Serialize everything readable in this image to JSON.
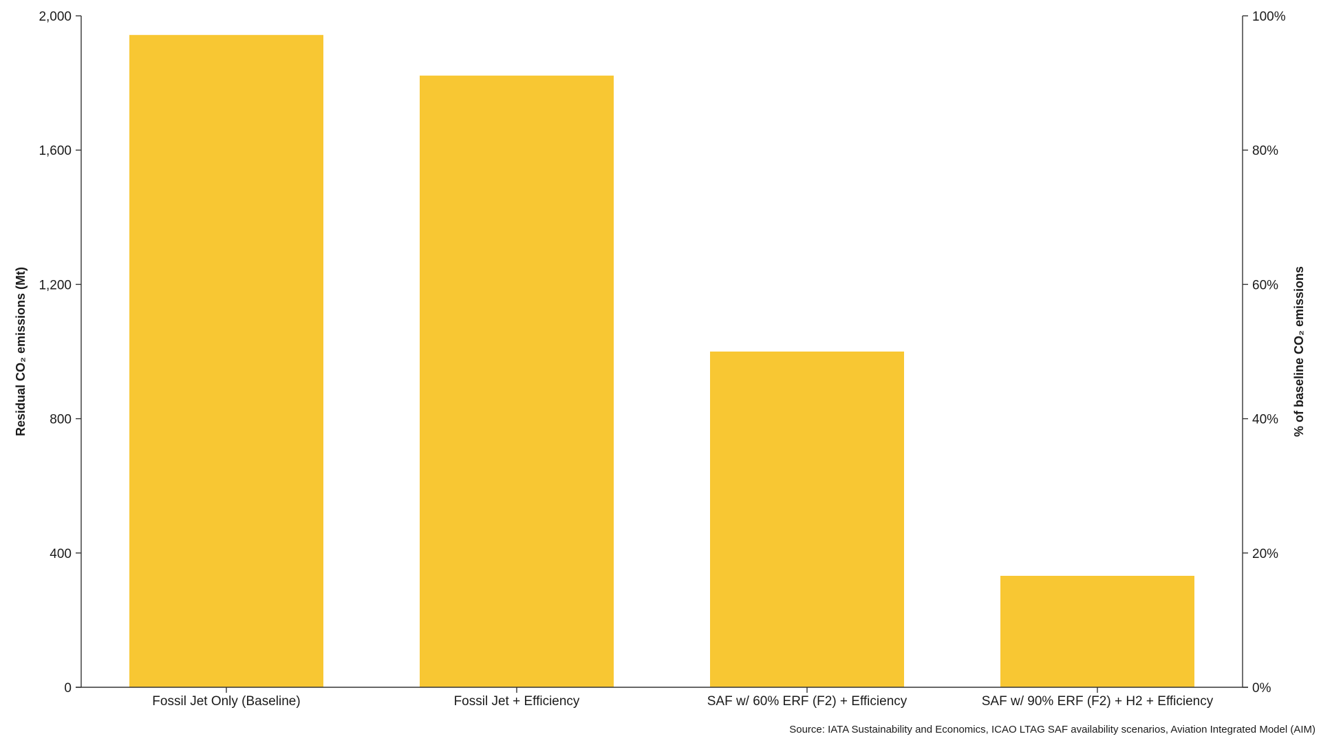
{
  "chart_data": {
    "type": "bar",
    "categories": [
      "Fossil Jet Only (Baseline)",
      "Fossil Jet + Efficiency",
      "SAF w/ 60% ERF (F2) + Efficiency",
      "SAF w/ 90% ERF (F2) + H2 + Efficiency"
    ],
    "values": [
      1943,
      1822,
      1000,
      332
    ],
    "bar_color": "#F8C733",
    "title": "",
    "ylabel": "Residual CO₂ emissions (Mt)",
    "ylabel_right": "% of baseline CO₂ emissions",
    "ylim": [
      0,
      2000
    ],
    "yticks": [
      0,
      400,
      800,
      1200,
      1600,
      2000
    ],
    "ytick_labels": [
      "0",
      "400",
      "800",
      "1,200",
      "1,600",
      "2,000"
    ],
    "ylim_right": [
      0,
      100
    ],
    "yticks_right": [
      0,
      20,
      40,
      60,
      80,
      100
    ],
    "ytick_labels_right": [
      "0%",
      "20%",
      "40%",
      "60%",
      "80%",
      "100%"
    ],
    "grid": false,
    "legend": "none",
    "source": "Source: IATA Sustainability and Economics, ICAO LTAG SAF availability scenarios, Aviation Integrated Model (AIM)"
  }
}
